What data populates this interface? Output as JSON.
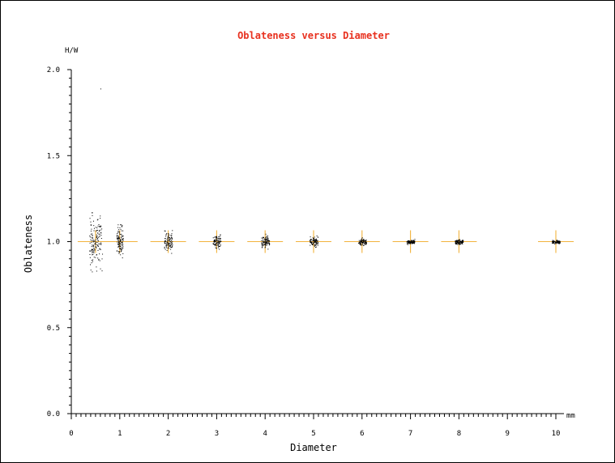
{
  "chart_data": {
    "type": "scatter",
    "title": "Oblateness versus Diameter",
    "xlabel": "Diameter",
    "ylabel": "Oblateness",
    "x_unit_label": "mm",
    "y_unit_label": "H/W",
    "xlim": [
      0,
      10.5
    ],
    "ylim": [
      0,
      2.0
    ],
    "x_ticks": [
      "0",
      "1",
      "2",
      "3",
      "4",
      "5",
      "6",
      "7",
      "8",
      "9",
      "10"
    ],
    "y_ticks": [
      "0.0",
      "0.5",
      "1.0",
      "1.5",
      "2.0"
    ],
    "grid": false,
    "colors": {
      "title": "#e8311f",
      "points": "#000000",
      "reference_markers": "#f2b33d",
      "axes": "#000000"
    },
    "reference_markers": {
      "x": [
        0.5,
        1,
        2,
        3,
        4,
        5,
        6,
        7,
        8,
        10
      ],
      "y": [
        1.0,
        1.0,
        1.0,
        1.0,
        1.0,
        1.0,
        1.0,
        1.0,
        1.0,
        1.0
      ]
    },
    "point_clusters": [
      {
        "x": 0.5,
        "y_min": 0.76,
        "y_max": 1.17,
        "y_center": 1.0
      },
      {
        "x": 1.0,
        "y_min": 0.87,
        "y_max": 1.1,
        "y_center": 1.0
      },
      {
        "x": 2.0,
        "y_min": 0.92,
        "y_max": 1.07,
        "y_center": 1.0
      },
      {
        "x": 3.0,
        "y_min": 0.94,
        "y_max": 1.05,
        "y_center": 1.0
      },
      {
        "x": 4.0,
        "y_min": 0.95,
        "y_max": 1.05,
        "y_center": 1.0
      },
      {
        "x": 5.0,
        "y_min": 0.96,
        "y_max": 1.04,
        "y_center": 1.0
      },
      {
        "x": 6.0,
        "y_min": 0.97,
        "y_max": 1.03,
        "y_center": 1.0
      },
      {
        "x": 7.0,
        "y_min": 0.98,
        "y_max": 1.02,
        "y_center": 1.0
      },
      {
        "x": 8.0,
        "y_min": 0.98,
        "y_max": 1.02,
        "y_center": 1.0
      },
      {
        "x": 10.0,
        "y_min": 0.985,
        "y_max": 1.015,
        "y_center": 1.0
      }
    ],
    "outlier_points": [
      {
        "x": 0.6,
        "y": 1.89
      }
    ]
  }
}
